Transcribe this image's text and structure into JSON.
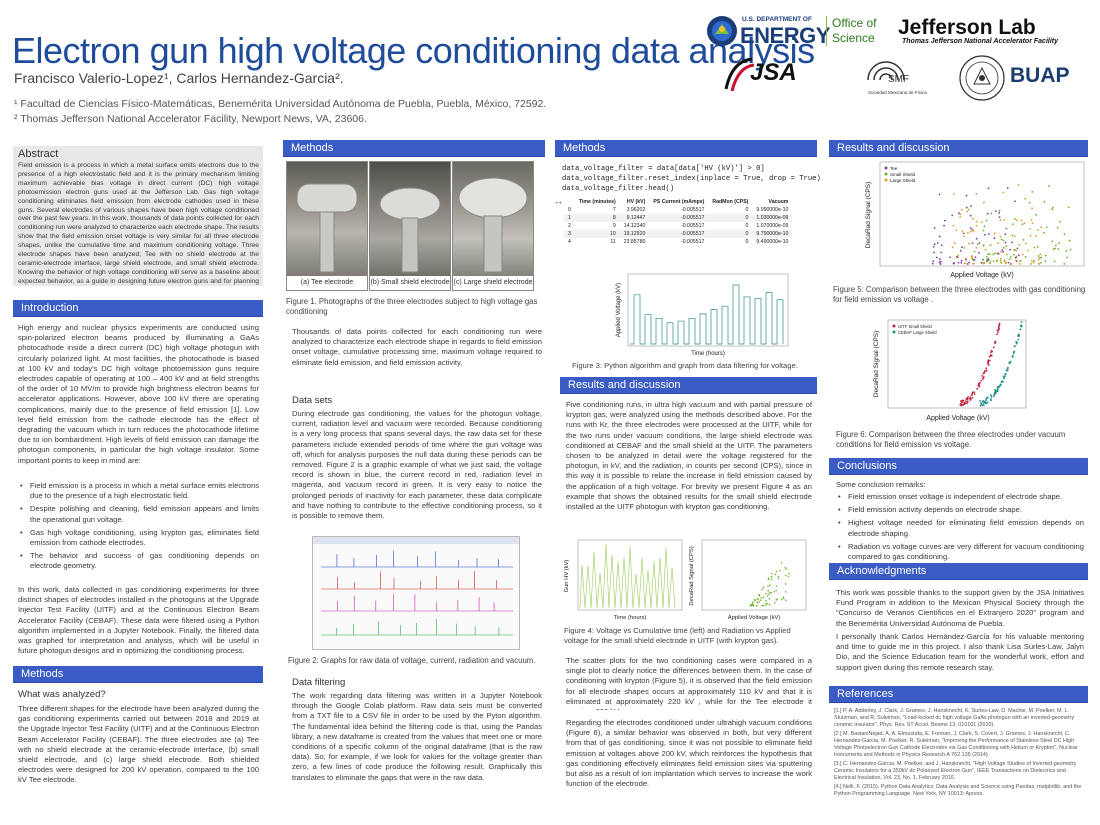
{
  "header": {
    "title": "Electron gun high voltage conditioning data analysis",
    "authors": "Francisco Valerio-Lopez¹, Carlos Hernandez-Garcia².",
    "affiliation_1": "¹ Facultad de Ciencias Físico-Matemáticas, Benemérita Universidad Autónoma de Puebla, Puebla, México, 72592.",
    "affiliation_2": "² Thomas Jefferson National Accelerator Facility, Newport News, VA, 23606."
  },
  "logos": {
    "doe_small": "U.S. DEPARTMENT OF",
    "doe_big": "ENERGY",
    "office_1": "Office of",
    "office_2": "Science",
    "jlab": "Jefferson Lab",
    "jlab_sub": "Thomas Jefferson National Accelerator Facility",
    "jsa": "JSA",
    "smf": "SMF",
    "smf_sub": "Sociedad Mexicana de Física",
    "buap": "BUAP"
  },
  "abstract": {
    "heading": "Abstract",
    "text": "Field emission is a process in which a metal surface emits electrons due to the presence of a high electrostatic field and it is the primary mechanism limiting maximum achievable bias voltage in direct current (DC) high voltage photoemission electron guns used at the Jefferson Lab. Gas high voltage conditioning eliminates field emission from electrode cathodes used in these guns. Several electrodes of various shapes have been high voltage conditioned over the past few years. In this work, thousands of data points collected for each conditioning run were analyzed to characterize each electrode shape. The results show that the field emission onset voltage is very similar for all three electrode shapes, unlike the cumulative time and maximum conditioning voltage. Three electrode shapes have been analyzed; Tee with no shield electrode at the ceramic-electrode interface, large shield electrode, and small shield electrode. Knowing the behavior of high voltage conditioning will serve as a baseline about expected behavior, as a guide in designing future electron guns and for planning the length of time required in their high voltage conditioning phase."
  },
  "introduction": {
    "heading": "Introduction",
    "p1": "High energy and nuclear physics experiments are conducted using spin-polarized electron beams produced by illuminating a GaAs photocathode inside a direct current (DC) high voltage photogun with circularly polarized light. At most facilities, the photocathode is biased at 100 kV and today's DC high voltage photoemission guns require electrodes capable of operating at 100 – 400 kV and at field strengths of the order of 10 MV/m to provide high brightness electron beams for accelerator applications. However, above 100 kV there are operating complications, mainly due to the presence of field emission [1]. Low level field emission from the cathode electrode has the effect of degrading the vacuum which in turn reduces the photocathode lifetime due to ion bombardment. High levels of field emission can damage the photogun components, in particular the high voltage insulator. Some important points to keep in mind are:",
    "bullets": [
      "Field emission is a process in which a metal surface emits electrons due to the presence of a high electrostatic field.",
      "Despite polishing and cleaning, field emission appears and limits the operational gun voltage.",
      "Gas high voltage conditioning, using krypton gas, eliminates field emission from cathode electrodes.",
      "The behavior and success of gas conditioning depends on electrode geometry."
    ],
    "p2": "In this work, data collected in gas conditioning experiments for three distinct shapes of electrodes installed in the photoguns at the Upgrade Injector Test Facility (UITF) and at the Continuous Electron Beam Accelerator Facility (CEBAF). These data were filtered using a Python algorithm implemented in a Jupyter Notebook. Finally, the filtered data was graphed for interpretation and analysis, which will be useful in future photogun designs and in optimizing the conditioning process."
  },
  "methods_left": {
    "heading": "Methods",
    "subheading": "What was analyzed?",
    "text": "Three different shapes for the electrode have been analyzed during the gas conditioning experiments carried out between 2018 and 2019 at the Upgrade Injector Test Facility (UITF) and at the Continuous Electron Beam Accelerator Facility (CEBAF). The three electrodes are (a) Tee with no shield electrode at the ceramic-electrode interface, (b) small shield electrode, and (c) large shield electrode. Both shielded electrodes were designed for 200 kV operation, compared to the 100 kV Tee electrode."
  },
  "methods_mid": {
    "heading": "Methods",
    "photo_labels": [
      "(a) Tee electrode",
      "(b) Small shield electrode",
      "(c) Large shield electrode"
    ],
    "fig1_caption": "Figure 1. Photographs of the three electrodes subject to high voltage gas conditioning",
    "p1": "Thousands of data points collected for each conditioning run were analyzed to characterize each electrode shape in regards to field emission onset voltage, cumulative processing time, maximum voltage required to eliminate field emission, and field emission activity.",
    "datasets_heading": "Data sets",
    "datasets_text": "During electrode gas conditioning, the values for the photogun voltage, current, radiation level and vacuum were recorded. Because conditioning is a very long process that spans several days, the raw data set for these parameters include extended periods of time where the gun voltage was off, which for analysis purposes the null data during these periods can be removed. Figure 2 is a graphic example of what we just said, the voltage record is shown in blue, the current record in red, radiation level in magenta, and vacuum record in green. It is very easy to notice the prolonged periods of inactivity for each parameter, these data complicate and have nothing to contribute to the effective conditioning process, so it is possible to remove them.",
    "fig2_caption": "Figure 2: Graphs for raw data of voltage, current, radiation and vacuum.",
    "filter_heading": "Data filtering",
    "filter_text": "The work regarding data filtering was written in a Jupyter Notebook through the Google Colab platform. Raw data sets must be converted from a TXT file to a CSV file in order to be used by the Pyton algorithm. The fundamental idea behind the filtering code is that, using the Pandas library, a new dataframe is created from the values that meet one or more conditions of a specific column of the original dataframe (that is the raw data). So, for example, if we look for values for the voltage greater than zero, a few lines of code produce the following result. Graphically this translates to eliminate the gaps that were in the raw data."
  },
  "methods_right": {
    "heading": "Methods",
    "code_1": "data_voltage_filter = data[data['HV (kV)'] > 0]",
    "code_2": "data_voltage_filter.reset_index(inplace = True, drop = True)",
    "code_3": "data_voltage_filter.head()",
    "table_headers": [
      "",
      "Time (minutes)",
      "HV (kV)",
      "PS Current (mAmps)",
      "RadMon (CPS)",
      "Vacuum"
    ],
    "table_rows": [
      [
        "0",
        "7",
        "3.96202",
        "-0.005517",
        "0",
        "9.990000e-10"
      ],
      [
        "1",
        "8",
        "9.12447",
        "-0.005517",
        "0",
        "1.030000e-09"
      ],
      [
        "2",
        "9",
        "14.12340",
        "-0.005517",
        "0",
        "1.070000e-09"
      ],
      [
        "3",
        "10",
        "19.12920",
        "-0.005517",
        "0",
        "9.790000e-10"
      ],
      [
        "4",
        "11",
        "23.85780",
        "-0.005517",
        "0",
        "9.490000e-10"
      ]
    ],
    "fig3_caption": "Figure 3: Python algorithm and graph from data filtering for voltage.",
    "fig3_xlabel": "Time (hours)",
    "fig3_ylabel": "Applied Voltage (kV)"
  },
  "results_mid": {
    "heading": "Results and discussion",
    "p1": "Five conditioning runs, in ultra high vacuum and with partial pressure of krypton gas, were analyzed using the methods described above. For the runs with Kr, the three electrodes were processed at the UITF, while for the two runs under vacuum conditions, the large shield electrode was conditioned at CEBAF and the small shield at the UITF. The parameters chosen to be analyzed in detail were the voltage registered for the photogun, in kV, and the radiation, in counts per second (CPS), since in this way it is possible to relate the increase in field emission caused by the application of a high voltage. For brevity we present Figure 4 as an example that shows the obtained results for the small shield electrode installed at the UITF photogun with krypton gas conditioning.",
    "fig4_caption": "Figure 4: Voltage vs Cumulative time (left) and Radiation vs Applied voltage for the small shield electrode in UITF (with krypton gas).",
    "fig4a_xlabel": "Time (hours)",
    "fig4a_ylabel": "Gun HV (kV)",
    "fig4b_xlabel": "Applied Voltage (kV)",
    "fig4b_ylabel": "DecaRad Signal (CPS)",
    "p2": "The scatter plots for the two conditioning cases were compared in a single plot to clearly notice the differences between them. In the case of conditioning with krypton (Figure 5), it is observed that the field emission for all electrode shapes occurs at approximately 110 kV and that it is eliminated at approximately 220 kV , while for the Tee electrode it requires 230 kV.",
    "p3": "Regarding the electrodes conditioned under ultrahigh vacuum conditions (Figure 6), a similar behavior was observed in both, but very different from that of gas conditioning, since it was not possible to eliminate field emission at voltages above 200 kV, which reinforces the hypothesis that gas conditioning effectively eliminates field emission sites via sputtering but also as a result of ion implantation which serves to increase the work function of the electrode."
  },
  "results_right": {
    "heading": "Results and discussion",
    "fig5_caption": "Figure 5: Comparison between the three electrodes with gas conditioning for field emission vs voltage .",
    "fig5_xlabel": "Applied Voltage (kV)",
    "fig5_ylabel": "DecaRad Signal (CPS)",
    "fig5_legend": [
      "Tee",
      "Small Shield",
      "Large Shield"
    ],
    "fig6_caption": "Figure 6: Comparison between the three electrodes under vacuum conditions for field emission vs voltage.",
    "fig6_xlabel": "Applied Voltage (kV)",
    "fig6_ylabel": "DecaRad Signal (CPS)",
    "fig6_legend": [
      "UITF Small Shield",
      "CEBAF Large Shield"
    ]
  },
  "conclusions": {
    "heading": "Conclusions",
    "intro": "Some conclusion remarks:",
    "bullets": [
      "Field emission onset voltage is independent of electrode shape.",
      "Field emission activity depends on electrode shape.",
      "Highest voltage needed for eliminating field emission depends on electrode shaping.",
      "Radiation vs voltage curves are very different for vacuum conditioning compared to gas conditioning."
    ]
  },
  "acknowledgments": {
    "heading": "Acknowledgments",
    "p1": "This work was possible thanks to the support given by the JSA Initiatives Fund Program in addition to the Mexican Physical Society through the \"Concurso de Veranos Científicos en el Extranjero 2020\" program and the Benemérita Universidad Autónoma de Puebla.",
    "p2": "I personally thank Carlos Hernández-García for his valuable mentoring and time to guide me in this project. I also thank Lisa Surles-Law, Jalyn Dio, and the Science Education team for the wonderful work, effort and support given during this remote research stay."
  },
  "references": {
    "heading": "References",
    "items": [
      "[1.] P. A. Adderley, J. Clark, J. Grames, J. Hansknecht, K. Surles-Law, D. Machie, M. Poelker, M. L. Stutzman, and R. Suleiman, \"Load-locked dc high voltage GaAs photogun with an inverted-geometry ceramic insulator\", Phys. Rev. ST Accel. Beams 13, 010101 (2010).",
      "[2.] M. BastaniNejad, A. A. Elmustafa, E. Forman, J. Clark, S. Covert, J. Grames, J. Hansknecht, C. Hernandez-Garcia, M. Poelker, R. Suleiman, \"Improving the Performance of Stainless-Steel DC High Voltage Photoelectron Gun Cathode Electrodes via Gas Conditioning with Helium or Krypton\", Nuclear Instruments and Methods in Physics Research A 762 135 (2014).",
      "[3.] C. Hernandez-Garcia, M. Poelker, and J. Hansknecht, \"High Voltage Studies of Inverted-geometry Ceramic Insulators for a 350kV dc Polarized Electron Gun\", IEEE Transactions on Dielectrics and Electrical Insulation, Vol. 23, No. 1, February 2016.",
      "[4.] Nelli, F. (2015). Python Data Analytics: Data Analysis and Science using Pandas, matplotlib, and the Python Programming Language. New York, NY 10013: Apress."
    ]
  },
  "colors": {
    "title_blue": "#1f4c9a",
    "header_blue": "#3b5cc4",
    "voltage_line": "#2a8a8a",
    "series_purple": "#7b3fa0",
    "series_green": "#6ab42a",
    "series_orange": "#e39a1c",
    "series_red": "#c0243c",
    "series_teal": "#1f8f84"
  }
}
